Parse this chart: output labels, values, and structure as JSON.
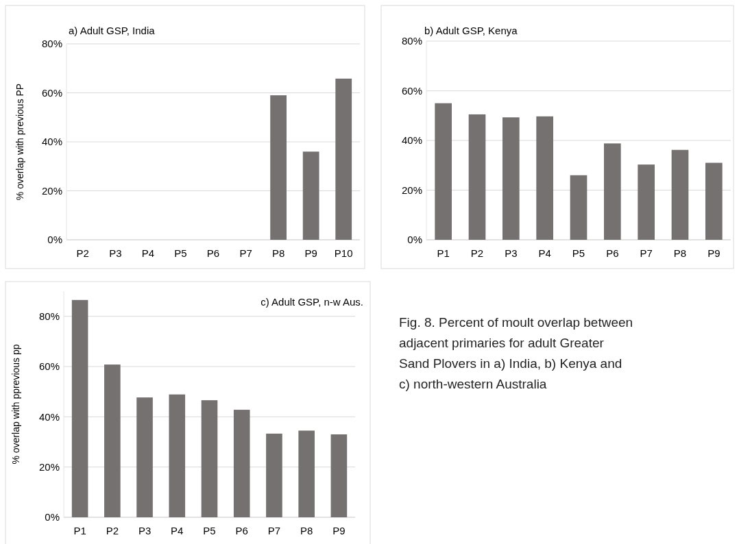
{
  "chart_data": [
    {
      "type": "bar",
      "title": "a) Adult GSP, India",
      "ylabel": "% overlap with previous PP",
      "categories": [
        "P2",
        "P3",
        "P4",
        "P5",
        "P6",
        "P7",
        "P8",
        "P9",
        "P10"
      ],
      "values": [
        0,
        0,
        0,
        0,
        0,
        0,
        59,
        36,
        65.8
      ],
      "color": "#767171",
      "ylim": [
        0,
        80
      ],
      "yticks": [
        {
          "value": 0,
          "label": "0%"
        },
        {
          "value": 20,
          "label": "20%"
        },
        {
          "value": 40,
          "label": "40%"
        },
        {
          "value": 60,
          "label": "60%"
        },
        {
          "value": 80,
          "label": "80%"
        }
      ],
      "grid": "y"
    },
    {
      "type": "bar",
      "title": "b) Adult GSP, Kenya",
      "categories": [
        "P1",
        "P2",
        "P3",
        "P4",
        "P5",
        "P6",
        "P7",
        "P8",
        "P9"
      ],
      "values": [
        55,
        50.5,
        49.3,
        49.7,
        26,
        38.8,
        30.3,
        36.2,
        31
      ],
      "color": "#767171",
      "ylim": [
        0,
        80
      ],
      "yticks": [
        {
          "value": 0,
          "label": "0%"
        },
        {
          "value": 20,
          "label": "20%"
        },
        {
          "value": 40,
          "label": "40%"
        },
        {
          "value": 60,
          "label": "60%"
        },
        {
          "value": 80,
          "label": "80%"
        }
      ],
      "grid": "y"
    },
    {
      "type": "bar",
      "title": "c) Adult GSP, n-w Aus.",
      "ylabel": "% overlap with pprevious pp",
      "categories": [
        "P1",
        "P2",
        "P3",
        "P4",
        "P5",
        "P6",
        "P7",
        "P8",
        "P9"
      ],
      "values": [
        86.5,
        60.8,
        47.7,
        48.9,
        46.6,
        42.8,
        33.3,
        34.5,
        33
      ],
      "color": "#767171",
      "ylim": [
        0,
        90
      ],
      "yticks": [
        {
          "value": 0,
          "label": "0%"
        },
        {
          "value": 20,
          "label": "20%"
        },
        {
          "value": 40,
          "label": "40%"
        },
        {
          "value": 60,
          "label": "60%"
        },
        {
          "value": 80,
          "label": "80%"
        }
      ],
      "grid": "y"
    },
    {
      "type": "other",
      "annotations": [
        "Fig. 8. Percent of moult overlap between adjacent primaries for adult Greater Sand Plovers in a) India, b) Kenya and c) north-western Australia"
      ]
    }
  ]
}
